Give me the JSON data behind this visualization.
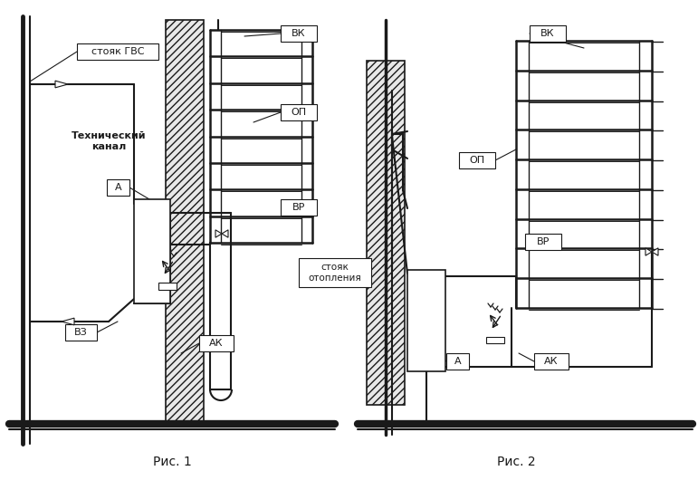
{
  "line_color": "#1a1a1a",
  "fig1_caption": "Рис. 1",
  "fig2_caption": "Рис. 2",
  "label_stoyak_gvs": "стояк ГВС",
  "label_tech": "Технический\nканал",
  "label_A1": "А",
  "label_VK1": "ВК",
  "label_OP1": "ОП",
  "label_VR1": "ВР",
  "label_AK1": "АК",
  "label_VZ": "ВЗ",
  "label_stoyak_ot": "стояк\nотопления",
  "label_VK2": "ВК",
  "label_OP2": "ОП",
  "label_VR2": "ВР",
  "label_AK2": "АК",
  "label_A2": "А"
}
